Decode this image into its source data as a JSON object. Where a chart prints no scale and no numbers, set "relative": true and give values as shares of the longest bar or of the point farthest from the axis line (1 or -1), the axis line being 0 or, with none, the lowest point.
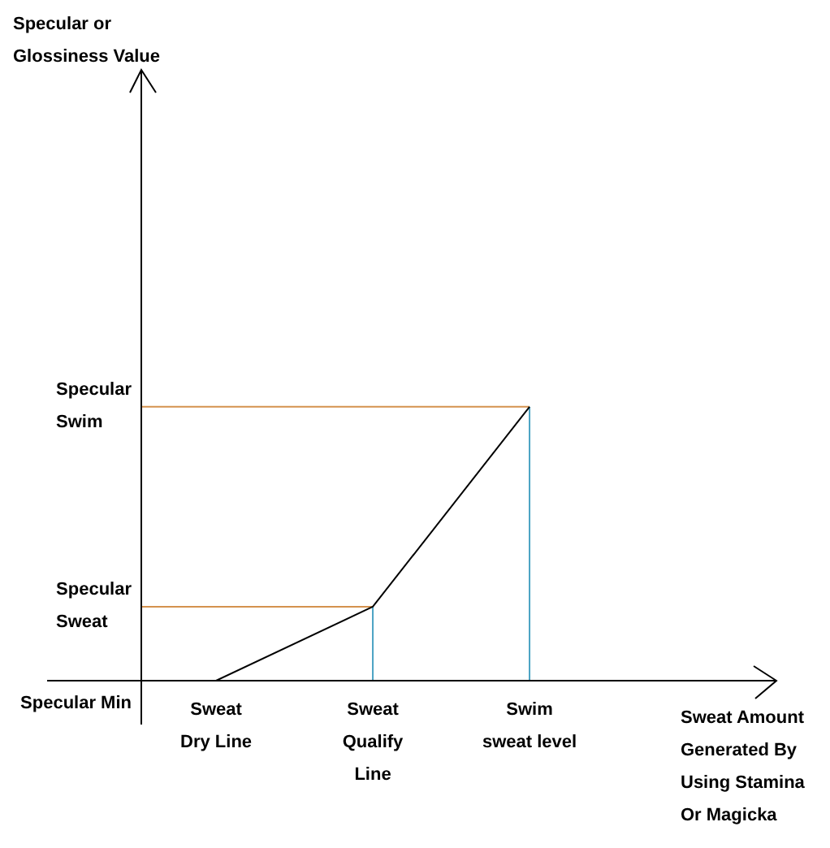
{
  "chart_data": {
    "type": "line",
    "relative": true,
    "categories": [
      "Sweat\nDry Line",
      "Sweat\nQualify\nLine",
      "Swim\nsweat level"
    ],
    "values": [
      0,
      0.27,
      1
    ],
    "color": "#000000",
    "ref_lines": [
      {
        "axis": "y",
        "value": 0.27,
        "label": "Specular\nSweat",
        "color": "#d4924e"
      },
      {
        "axis": "y",
        "value": 1,
        "label": "Specular\nSwim",
        "color": "#d4924e"
      },
      {
        "axis": "x",
        "value": "Sweat\nQualify\nLine",
        "color": "#4ba3c3"
      },
      {
        "axis": "x",
        "value": "Swim\nsweat level",
        "color": "#4ba3c3"
      }
    ],
    "annotations": [
      "Specular or\nGlossiness Value",
      "Sweat Amount\nGenerated By\nUsing Stamina\nOr Magicka",
      "Specular Min"
    ]
  }
}
